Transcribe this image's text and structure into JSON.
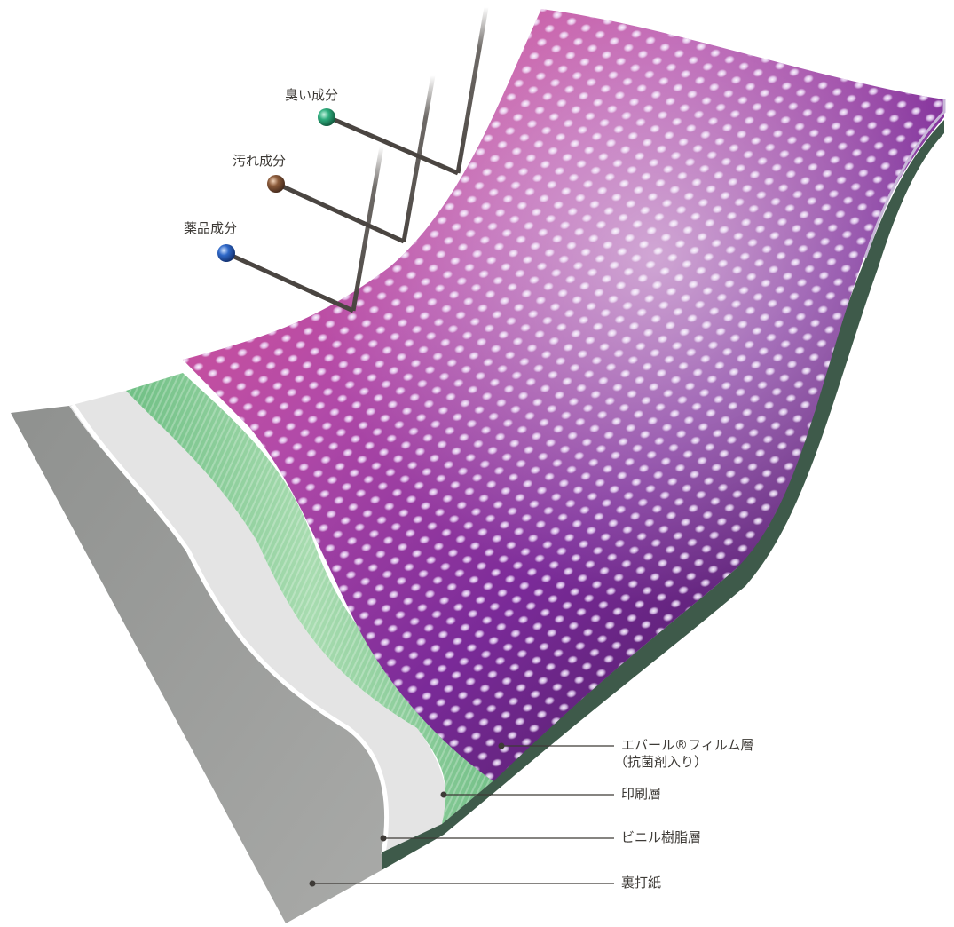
{
  "contaminants": [
    {
      "label": "臭い成分",
      "ball_color": "#2fae7e"
    },
    {
      "label": "汚れ成分",
      "ball_color": "#8a5a3a"
    },
    {
      "label": "薬品成分",
      "ball_color": "#2f68c8"
    }
  ],
  "layers": [
    {
      "label_line1": "エバール®フィルム層",
      "label_line2": "（抗菌剤入り）"
    },
    {
      "label_line1": "印刷層"
    },
    {
      "label_line1": "ビニル樹脂層"
    },
    {
      "label_line1": "裏打紙"
    }
  ],
  "colors": {
    "film_pink": "#e0508c",
    "film_purple": "#8a2aa6",
    "film_dark": "#3a1a4a",
    "print_green": "#8ccf9a",
    "vinyl_white": "#e6e6e6",
    "paper_gray": "#9a9c9a",
    "base_dark_green": "#3e5a4a",
    "leader_line": "#3d3a36"
  }
}
